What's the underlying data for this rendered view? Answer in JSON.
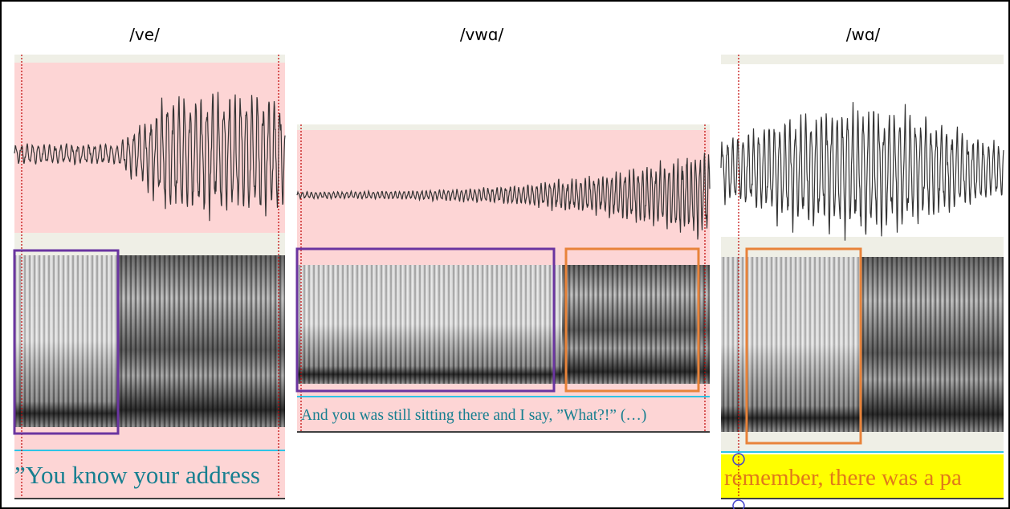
{
  "panels": [
    {
      "title": "/ve/",
      "transcript": "”You know your address"
    },
    {
      "title": "/vwɑ/",
      "transcript": "And you was still sitting there and I say, ”What?!” (…)"
    },
    {
      "title": "/wɑ/",
      "transcript": "remember, there was a pa"
    }
  ]
}
